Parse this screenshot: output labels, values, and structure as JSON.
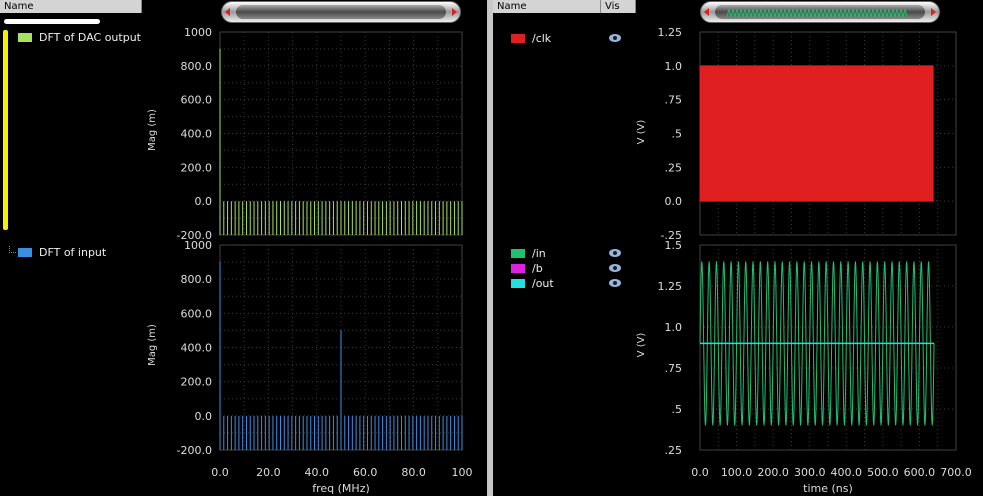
{
  "left_tree": {
    "header": "Name",
    "items": [
      {
        "label": "DFT of DAC output",
        "color": "#a8e060"
      },
      {
        "label": "DFT of input",
        "color": "#3b8fe0"
      }
    ]
  },
  "right_tree": {
    "header_name": "Name",
    "header_vis": "Vis",
    "items": [
      {
        "label": "/clk",
        "color": "#e02020"
      },
      {
        "label": "/in",
        "color": "#20c070"
      },
      {
        "label": "/b",
        "color": "#e020e0"
      },
      {
        "label": "/out",
        "color": "#20e0e0"
      }
    ]
  },
  "dft_plot": {
    "ylabel": "Mag (m)",
    "xlabel": "freq (MHz)",
    "y_ticks": [
      "1000",
      "800.0",
      "600.0",
      "400.0",
      "200.0",
      "0.0",
      "-200.0"
    ],
    "x_ticks": [
      "0.0",
      "20.0",
      "40.0",
      "60.0",
      "80.0",
      "100"
    ]
  },
  "time_plot": {
    "ylabel_top": "V (V)",
    "ylabel_bottom": "V (V)",
    "xlabel": "time (ns)",
    "y_ticks_top": [
      "1.25",
      "1.0",
      ".75",
      ".5",
      ".25",
      "0.0",
      "-.25"
    ],
    "y_ticks_bottom": [
      "1.5",
      "1.25",
      "1.0",
      ".75",
      ".5",
      ".25"
    ],
    "x_ticks": [
      "0.0",
      "100.0",
      "200.0",
      "300.0",
      "400.0",
      "500.0",
      "600.0",
      "700.0"
    ]
  },
  "chart_data": [
    {
      "type": "bar",
      "title": "",
      "xlabel": "freq (MHz)",
      "ylabel": "Mag (m)",
      "xlim": [
        0,
        100
      ],
      "ylim": [
        -200,
        1000
      ],
      "series": [
        {
          "name": "DFT of DAC output",
          "color": "#a8e060",
          "baseline": -200,
          "floor": 0,
          "dc": 900,
          "spacing_mhz": 1.5625
        }
      ]
    },
    {
      "type": "bar",
      "title": "",
      "xlabel": "freq (MHz)",
      "ylabel": "Mag (m)",
      "xlim": [
        0,
        100
      ],
      "ylim": [
        -200,
        1000
      ],
      "series": [
        {
          "name": "DFT of input",
          "color": "#3b8fe0",
          "baseline": -200,
          "floor": 0,
          "dc": 900,
          "peak_x": 50,
          "peak_y": 500,
          "spacing_mhz": 1.5625
        }
      ]
    },
    {
      "type": "line",
      "title": "",
      "xlabel": "time (ns)",
      "ylabel": "V (V)",
      "xlim": [
        0,
        700
      ],
      "ylim": [
        -0.25,
        1.25
      ],
      "series": [
        {
          "name": "/clk",
          "color": "#e02020",
          "low": 0,
          "high": 1.0,
          "period_ns": 5,
          "t_end": 640
        }
      ]
    },
    {
      "type": "line",
      "title": "",
      "xlabel": "time (ns)",
      "ylabel": "V (V)",
      "xlim": [
        0,
        700
      ],
      "ylim": [
        0.25,
        1.5
      ],
      "series": [
        {
          "name": "/in",
          "color": "#20c070",
          "min": 0.4,
          "max": 1.4,
          "period_ns": 20,
          "t_end": 640
        },
        {
          "name": "/out",
          "color": "#20e0e0",
          "level": 0.9,
          "t_end": 640
        }
      ]
    }
  ]
}
